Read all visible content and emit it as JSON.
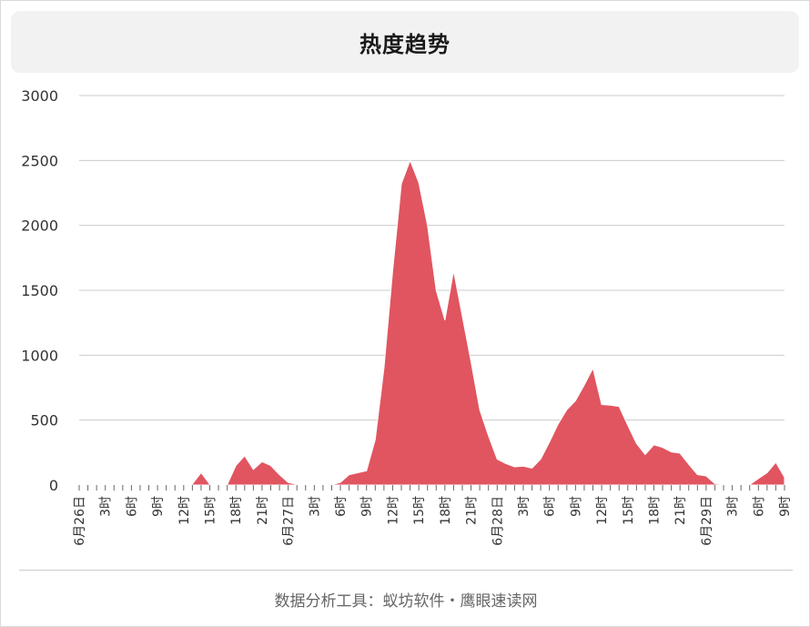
{
  "title": "热度趋势",
  "footer": "数据分析工具：蚁坊软件・鹰眼速读网",
  "colors": {
    "area": "#e05560",
    "grid": "#cccccc",
    "axis": "#666666"
  },
  "chart_data": {
    "type": "area",
    "title": "热度趋势",
    "ylim": [
      0,
      3000
    ],
    "yticks": [
      0,
      500,
      1000,
      1500,
      2000,
      2500,
      3000
    ],
    "grid": true,
    "x_hours": [
      "6月26日 0时",
      "6月26日 1时",
      "6月26日 2时",
      "6月26日 3时",
      "6月26日 4时",
      "6月26日 5时",
      "6月26日 6时",
      "6月26日 7时",
      "6月26日 8时",
      "6月26日 9时",
      "6月26日 10时",
      "6月26日 11时",
      "6月26日 12时",
      "6月26日 13时",
      "6月26日 14时",
      "6月26日 15时",
      "6月26日 16时",
      "6月26日 17时",
      "6月26日 18时",
      "6月26日 19时",
      "6月26日 20时",
      "6月26日 21时",
      "6月26日 22时",
      "6月26日 23时",
      "6月27日 0时",
      "6月27日 1时",
      "6月27日 2时",
      "6月27日 3时",
      "6月27日 4时",
      "6月27日 5时",
      "6月27日 6时",
      "6月27日 7时",
      "6月27日 8时",
      "6月27日 9时",
      "6月27日 10时",
      "6月27日 11时",
      "6月27日 12时",
      "6月27日 13时",
      "6月27日 14时",
      "6月27日 15时",
      "6月27日 16时",
      "6月27日 17时",
      "6月27日 18时",
      "6月27日 19时",
      "6月27日 20时",
      "6月27日 21时",
      "6月27日 22时",
      "6月27日 23时",
      "6月28日 0时",
      "6月28日 1时",
      "6月28日 2时",
      "6月28日 3时",
      "6月28日 4时",
      "6月28日 5时",
      "6月28日 6时",
      "6月28日 7时",
      "6月28日 8时",
      "6月28日 9时",
      "6月28日 10时",
      "6月28日 11时",
      "6月28日 12时",
      "6月28日 13时",
      "6月28日 14时",
      "6月28日 15时",
      "6月28日 16时",
      "6月28日 17时",
      "6月28日 18时",
      "6月28日 19时",
      "6月28日 20时",
      "6月28日 21时",
      "6月28日 22时",
      "6月28日 23时",
      "6月29日 0时",
      "6月29日 1时",
      "6月29日 2时",
      "6月29日 3时",
      "6月29日 4时",
      "6月29日 5时",
      "6月29日 6时",
      "6月29日 7时",
      "6月29日 8时",
      "6月29日 9时"
    ],
    "values": [
      0,
      0,
      0,
      0,
      0,
      0,
      0,
      0,
      3,
      3,
      3,
      3,
      5,
      8,
      95,
      5,
      3,
      3,
      150,
      225,
      120,
      180,
      150,
      80,
      20,
      5,
      3,
      3,
      3,
      3,
      20,
      80,
      95,
      110,
      350,
      900,
      1650,
      2320,
      2500,
      2330,
      2000,
      1500,
      1270,
      1650,
      1300,
      950,
      580,
      380,
      200,
      165,
      140,
      145,
      130,
      200,
      330,
      470,
      580,
      650,
      770,
      900,
      620,
      615,
      605,
      460,
      320,
      235,
      310,
      290,
      255,
      245,
      160,
      80,
      70,
      10,
      5,
      3,
      3,
      3,
      50,
      95,
      175,
      60
    ],
    "x_tick_labels": [
      {
        "i": 0,
        "label": "6月26日"
      },
      {
        "i": 3,
        "label": "3时"
      },
      {
        "i": 6,
        "label": "6时"
      },
      {
        "i": 9,
        "label": "9时"
      },
      {
        "i": 12,
        "label": "12时"
      },
      {
        "i": 15,
        "label": "15时"
      },
      {
        "i": 18,
        "label": "18时"
      },
      {
        "i": 21,
        "label": "21时"
      },
      {
        "i": 24,
        "label": "6月27日"
      },
      {
        "i": 27,
        "label": "3时"
      },
      {
        "i": 30,
        "label": "6时"
      },
      {
        "i": 33,
        "label": "9时"
      },
      {
        "i": 36,
        "label": "12时"
      },
      {
        "i": 39,
        "label": "15时"
      },
      {
        "i": 42,
        "label": "18时"
      },
      {
        "i": 45,
        "label": "21时"
      },
      {
        "i": 48,
        "label": "6月28日"
      },
      {
        "i": 51,
        "label": "3时"
      },
      {
        "i": 54,
        "label": "6时"
      },
      {
        "i": 57,
        "label": "9时"
      },
      {
        "i": 60,
        "label": "12时"
      },
      {
        "i": 63,
        "label": "15时"
      },
      {
        "i": 66,
        "label": "18时"
      },
      {
        "i": 69,
        "label": "21时"
      },
      {
        "i": 72,
        "label": "6月29日"
      },
      {
        "i": 75,
        "label": "3时"
      },
      {
        "i": 78,
        "label": "6时"
      },
      {
        "i": 81,
        "label": "9时"
      }
    ]
  }
}
